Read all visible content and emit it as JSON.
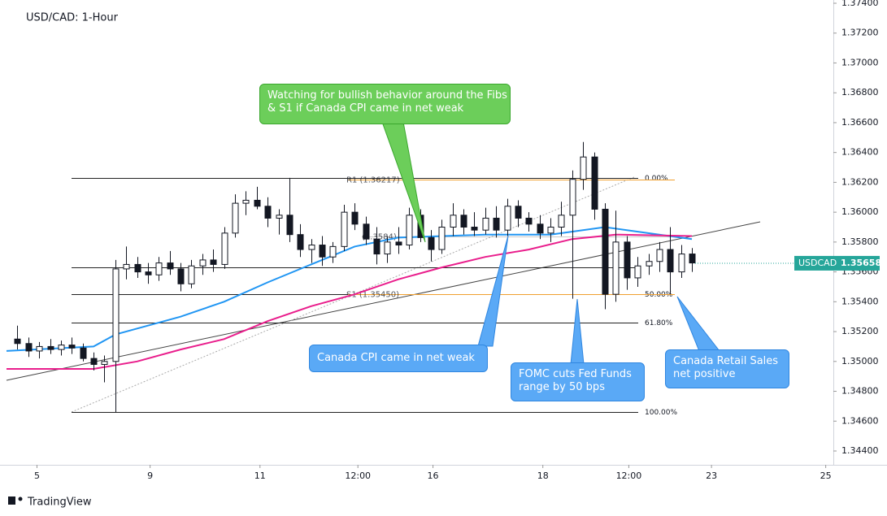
{
  "chart_data": {
    "type": "candlestick",
    "title": "USD/CAD: 1-Hour",
    "symbol": "USDCAD",
    "last_price": 1.35658,
    "brand": "TradingView",
    "xlim": [
      -1,
      75
    ],
    "xticks": [
      {
        "value": 1.8,
        "label": "5"
      },
      {
        "value": 12.2,
        "label": "9"
      },
      {
        "value": 22.3,
        "label": "11"
      },
      {
        "value": 31.3,
        "label": "12:00"
      },
      {
        "value": 38.2,
        "label": "16"
      },
      {
        "value": 48.3,
        "label": "18"
      },
      {
        "value": 56.2,
        "label": "12:00"
      },
      {
        "value": 63.8,
        "label": "23"
      },
      {
        "value": 74.3,
        "label": "25"
      }
    ],
    "ylim": [
      1.3431,
      1.3742
    ],
    "yticks": [
      {
        "value": 1.344,
        "label": "1.34400"
      },
      {
        "value": 1.346,
        "label": "1.34600"
      },
      {
        "value": 1.348,
        "label": "1.34800"
      },
      {
        "value": 1.35,
        "label": "1.35000"
      },
      {
        "value": 1.352,
        "label": "1.35200"
      },
      {
        "value": 1.354,
        "label": "1.35400"
      },
      {
        "value": 1.356,
        "label": "1.35600"
      },
      {
        "value": 1.358,
        "label": "1.35800"
      },
      {
        "value": 1.36,
        "label": "1.36000"
      },
      {
        "value": 1.362,
        "label": "1.36200"
      },
      {
        "value": 1.364,
        "label": "1.36400"
      },
      {
        "value": 1.366,
        "label": "1.36600"
      },
      {
        "value": 1.368,
        "label": "1.36800"
      },
      {
        "value": 1.37,
        "label": "1.37000"
      },
      {
        "value": 1.372,
        "label": "1.37200"
      },
      {
        "value": 1.374,
        "label": "1.37400"
      }
    ],
    "candles": [
      [
        1.3515,
        1.3524,
        1.3508,
        1.3512
      ],
      [
        1.3512,
        1.3516,
        1.3503,
        1.3507
      ],
      [
        1.3507,
        1.3513,
        1.3502,
        1.351
      ],
      [
        1.351,
        1.3515,
        1.3505,
        1.3508
      ],
      [
        1.3508,
        1.3514,
        1.3504,
        1.3511
      ],
      [
        1.3511,
        1.3516,
        1.3505,
        1.3509
      ],
      [
        1.3509,
        1.3512,
        1.35,
        1.3502
      ],
      [
        1.3502,
        1.3506,
        1.3494,
        1.3498
      ],
      [
        1.3498,
        1.3504,
        1.3486,
        1.35
      ],
      [
        1.35,
        1.3568,
        1.3466,
        1.3562
      ],
      [
        1.3562,
        1.3577,
        1.3555,
        1.3565
      ],
      [
        1.3565,
        1.357,
        1.3556,
        1.356
      ],
      [
        1.356,
        1.3566,
        1.3552,
        1.3558
      ],
      [
        1.3558,
        1.357,
        1.3554,
        1.3566
      ],
      [
        1.3566,
        1.3574,
        1.3558,
        1.3562
      ],
      [
        1.3562,
        1.3566,
        1.3547,
        1.3552
      ],
      [
        1.3552,
        1.3568,
        1.3549,
        1.3564
      ],
      [
        1.3564,
        1.3572,
        1.3558,
        1.3568
      ],
      [
        1.3568,
        1.3575,
        1.356,
        1.3565
      ],
      [
        1.3565,
        1.359,
        1.3562,
        1.3586
      ],
      [
        1.3586,
        1.3612,
        1.3583,
        1.3606
      ],
      [
        1.3606,
        1.3614,
        1.3598,
        1.3608
      ],
      [
        1.3608,
        1.3617,
        1.3602,
        1.3604
      ],
      [
        1.3604,
        1.361,
        1.359,
        1.3596
      ],
      [
        1.3596,
        1.3602,
        1.3585,
        1.3598
      ],
      [
        1.3598,
        1.3623,
        1.358,
        1.3585
      ],
      [
        1.3585,
        1.3592,
        1.357,
        1.3575
      ],
      [
        1.3575,
        1.3582,
        1.3566,
        1.3578
      ],
      [
        1.3578,
        1.3584,
        1.3564,
        1.357
      ],
      [
        1.357,
        1.358,
        1.3566,
        1.3577
      ],
      [
        1.3577,
        1.3605,
        1.3574,
        1.36
      ],
      [
        1.36,
        1.3606,
        1.3588,
        1.3592
      ],
      [
        1.3592,
        1.3597,
        1.3578,
        1.3582
      ],
      [
        1.3582,
        1.359,
        1.3565,
        1.3572
      ],
      [
        1.3572,
        1.3584,
        1.3566,
        1.358
      ],
      [
        1.358,
        1.359,
        1.3572,
        1.3578
      ],
      [
        1.3578,
        1.3603,
        1.3575,
        1.3598
      ],
      [
        1.3598,
        1.3602,
        1.358,
        1.3583
      ],
      [
        1.3583,
        1.3588,
        1.3567,
        1.3575
      ],
      [
        1.3575,
        1.3595,
        1.3572,
        1.359
      ],
      [
        1.359,
        1.3606,
        1.3584,
        1.3598
      ],
      [
        1.3598,
        1.3602,
        1.3585,
        1.359
      ],
      [
        1.359,
        1.36,
        1.3584,
        1.3588
      ],
      [
        1.3588,
        1.3603,
        1.3585,
        1.3596
      ],
      [
        1.3596,
        1.3604,
        1.3583,
        1.3588
      ],
      [
        1.3588,
        1.3609,
        1.3584,
        1.3604
      ],
      [
        1.3604,
        1.3608,
        1.359,
        1.3596
      ],
      [
        1.3596,
        1.36,
        1.3587,
        1.3592
      ],
      [
        1.3592,
        1.3598,
        1.3582,
        1.3586
      ],
      [
        1.3586,
        1.3596,
        1.358,
        1.359
      ],
      [
        1.359,
        1.3607,
        1.3584,
        1.3598
      ],
      [
        1.3598,
        1.3628,
        1.3542,
        1.3622
      ],
      [
        1.3622,
        1.3647,
        1.3615,
        1.3637
      ],
      [
        1.3637,
        1.364,
        1.3595,
        1.3602
      ],
      [
        1.3602,
        1.3606,
        1.3535,
        1.3545
      ],
      [
        1.3545,
        1.3601,
        1.354,
        1.358
      ],
      [
        1.358,
        1.3584,
        1.3548,
        1.3556
      ],
      [
        1.3556,
        1.357,
        1.355,
        1.3564
      ],
      [
        1.3564,
        1.3572,
        1.3558,
        1.3567
      ],
      [
        1.3567,
        1.358,
        1.356,
        1.3575
      ],
      [
        1.3575,
        1.359,
        1.3545,
        1.356
      ],
      [
        1.356,
        1.3578,
        1.3556,
        1.3572
      ],
      [
        1.3572,
        1.3576,
        1.356,
        1.3566
      ]
    ],
    "moving_averages": [
      {
        "color": "#2196f3",
        "x": [
          -1,
          7,
          9,
          15,
          19,
          23,
          27,
          31,
          35,
          43,
          49,
          54,
          59,
          62
        ],
        "values": [
          1.3507,
          1.351,
          1.3518,
          1.353,
          1.354,
          1.3553,
          1.3565,
          1.3577,
          1.3583,
          1.3585,
          1.3585,
          1.359,
          1.3585,
          1.3582
        ]
      },
      {
        "color": "#e91e8c",
        "x": [
          -1,
          7,
          11,
          15,
          19,
          23,
          27,
          31,
          35,
          39,
          43,
          47,
          51,
          55,
          62
        ],
        "values": [
          1.3495,
          1.3495,
          1.35,
          1.3508,
          1.3515,
          1.3527,
          1.3537,
          1.3545,
          1.3555,
          1.3563,
          1.357,
          1.3575,
          1.3582,
          1.3585,
          1.3584
        ]
      }
    ],
    "fib_levels": [
      {
        "value": 1.3623,
        "label": "0.00%"
      },
      {
        "value": 1.3563,
        "label": null
      },
      {
        "value": 1.3545,
        "label": "50.00%"
      },
      {
        "value": 1.3526,
        "label": "61.80%"
      },
      {
        "value": 1.3466,
        "label": "100.00%"
      }
    ],
    "pivot_levels": [
      {
        "value": 1.36217,
        "label": "R1 (1.36217)"
      },
      {
        "value": 1.3584,
        "label": "(1.3584)"
      },
      {
        "value": 1.3545,
        "label": "S1 (1.35450)"
      }
    ],
    "annotations": [
      {
        "lines": [
          "Watching for bullish behavior around the Fibs",
          "& S1 if Canada CPI came in net weak"
        ]
      },
      {
        "lines": [
          "Canada CPI came in net weak"
        ]
      },
      {
        "lines": [
          "FOMC cuts Fed Funds",
          "range by 50 bps"
        ]
      },
      {
        "lines": [
          "Canada Retail Sales",
          "net positive"
        ]
      }
    ]
  }
}
